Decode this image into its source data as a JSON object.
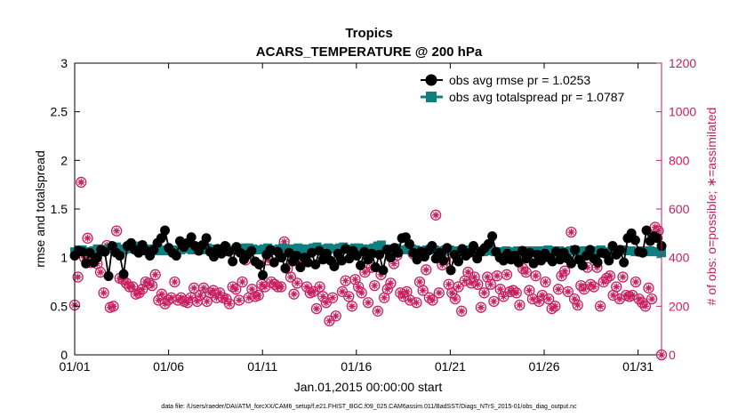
{
  "chart_data": {
    "type": "line",
    "title": "Tropics",
    "subtitle": "ACARS_TEMPERATURE @ 200 hPa",
    "xlabel": "Jan.01,2015 00:00:00 start",
    "ylabel": "rmse and totalspread",
    "y2label": "# of obs: o=possible; ∗=assimilated",
    "footnote": "data file: /Users/raeder/DAI/ATM_forcXX/CAM6_setup/f.e21.FHIST_BGC.f09_025.CAM6assim.011/BadSST/Diags_NTrS_2015-01/obs_diag_output.nc",
    "xlim": [
      1,
      32.25
    ],
    "x_ticks": [
      1,
      6,
      11,
      16,
      21,
      26,
      31
    ],
    "x_tick_labels": [
      "01/01",
      "01/06",
      "01/11",
      "01/16",
      "01/21",
      "01/26",
      "01/31"
    ],
    "ylim": [
      0,
      3
    ],
    "y_ticks": [
      0,
      0.5,
      1,
      1.5,
      2,
      2.5,
      3
    ],
    "y_tick_labels": [
      "0",
      "0.5",
      "1",
      "1.5",
      "2",
      "2.5",
      "3"
    ],
    "y2lim": [
      0,
      1200
    ],
    "y2_ticks": [
      0,
      200,
      400,
      600,
      800,
      1000,
      1200
    ],
    "y2_tick_labels": [
      "0",
      "200",
      "400",
      "600",
      "800",
      "1000",
      "1200"
    ],
    "legend_position": "top-right",
    "colors": {
      "rmse": "#000000",
      "spread": "#0f7f7f",
      "obs": "#c71f5f"
    },
    "series": [
      {
        "name": "obs avg rmse pr = 1.0253",
        "axis": "left",
        "marker": "circle",
        "values": [
          1.02,
          1.07,
          1.06,
          0.94,
          1.05,
          0.95,
          1.0,
          1.08,
          1.06,
          0.81,
          1.12,
          1.05,
          1.02,
          0.83,
          1.12,
          1.15,
          1.08,
          1.05,
          1.13,
          1.07,
          1.02,
          1.08,
          1.15,
          1.2,
          1.28,
          1.1,
          1.05,
          1.02,
          1.17,
          1.11,
          1.15,
          1.21,
          1.12,
          1.07,
          1.13,
          1.2,
          1.06,
          1.01,
          1.09,
          1.04,
          1.12,
          1.06,
          0.96,
          1.11,
          1.05,
          0.98,
          1.03,
          1.07,
          0.96,
          0.93,
          0.82,
          1.03,
          1.08,
          0.95,
          1.06,
          1.0,
          0.89,
          1.05,
          0.96,
          1.02,
          0.9,
          1.0,
          0.95,
          1.05,
          0.93,
          1.07,
          0.98,
          1.04,
          0.97,
          0.91,
          1.04,
          0.97,
          1.09,
          0.99,
          1.07,
          1.02,
          0.92,
          1.06,
          0.98,
          1.04,
          0.9,
          1.03,
          0.87,
          1.08,
          1.0,
          1.1,
          1.05,
          1.2,
          1.21,
          1.14,
          1.05,
          0.98,
          1.06,
          1.01,
          1.07,
          1.12,
          0.99,
          1.05,
          0.97,
          1.1,
          0.87,
          1.03,
          0.96,
          1.09,
          1.02,
          1.05,
          1.12,
          0.99,
          1.06,
          1.1,
          1.14,
          1.22,
          1.06,
          1.0,
          0.97,
          1.04,
          0.98,
          1.02,
          0.95,
          1.07,
          0.99,
          1.05,
          0.94,
          1.03,
          0.97,
          1.04,
          1.0,
          0.96,
          1.06,
          0.98,
          1.05,
          0.99,
          0.94,
          1.08,
          0.98,
          0.92,
          1.02,
          1.08,
          0.99,
          0.95,
          1.05,
          1.04,
          0.97,
          1.12,
          1.03,
          1.08,
          0.95,
          1.2,
          1.25,
          1.18,
          1.06,
          1.05,
          1.28,
          1.17,
          1.22,
          1.2,
          1.12
        ]
      },
      {
        "name": "obs avg totalspread pr = 1.0787",
        "axis": "left",
        "marker": "square",
        "values": [
          1.06,
          1.08,
          1.08,
          1.06,
          1.06,
          1.07,
          1.09,
          1.08,
          1.08,
          1.09,
          1.1,
          1.11,
          1.09,
          1.08,
          1.09,
          1.1,
          1.12,
          1.11,
          1.08,
          1.07,
          1.09,
          1.08,
          1.07,
          1.08,
          1.07,
          1.08,
          1.08,
          1.07,
          1.08,
          1.09,
          1.1,
          1.08,
          1.08,
          1.09,
          1.08,
          1.1,
          1.09,
          1.08,
          1.07,
          1.09,
          1.1,
          1.08,
          1.08,
          1.09,
          1.09,
          1.1,
          1.1,
          1.09,
          1.08,
          1.08,
          1.09,
          1.1,
          1.08,
          1.07,
          1.09,
          1.1,
          1.09,
          1.08,
          1.09,
          1.1,
          1.09,
          1.09,
          1.08,
          1.1,
          1.11,
          1.09,
          1.08,
          1.1,
          1.09,
          1.09,
          1.1,
          1.11,
          1.09,
          1.08,
          1.1,
          1.1,
          1.09,
          1.08,
          1.09,
          1.1,
          1.12,
          1.13,
          1.09,
          1.08,
          1.09,
          1.1,
          1.08,
          1.08,
          1.09,
          1.09,
          1.08,
          1.06,
          1.07,
          1.08,
          1.09,
          1.08,
          1.07,
          1.07,
          1.08,
          1.08,
          1.07,
          1.06,
          1.06,
          1.07,
          1.08,
          1.07,
          1.06,
          1.07,
          1.06,
          1.07,
          1.08,
          1.06,
          1.06,
          1.06,
          1.07,
          1.05,
          1.06,
          1.07,
          1.07,
          1.06,
          1.07,
          1.06,
          1.07,
          1.06,
          1.07,
          1.08,
          1.07,
          1.06,
          1.07,
          1.06,
          1.06,
          1.07,
          1.08,
          1.06,
          1.07,
          1.07,
          1.06,
          1.05,
          1.07,
          1.08,
          1.06,
          1.06,
          1.07,
          1.06,
          1.07,
          1.08,
          1.07,
          1.07,
          1.06,
          1.06,
          1.07,
          1.06,
          1.07,
          1.06,
          1.06,
          1.05
        ]
      },
      {
        "name": "# of obs (possible / assimilated)",
        "axis": "right",
        "marker": "circle-asterisk",
        "values": [
          205,
          320,
          710,
          400,
          480,
          380,
          400,
          375,
          340,
          255,
          450,
          195,
          200,
          510,
          315,
          310,
          295,
          280,
          280,
          250,
          255,
          270,
          300,
          295,
          285,
          330,
          225,
          250,
          210,
          225,
          235,
          300,
          225,
          235,
          220,
          215,
          235,
          275,
          220,
          245,
          275,
          220,
          255,
          265,
          235,
          255,
          235,
          230,
          210,
          280,
          270,
          225,
          300,
          390,
          235,
          270,
          240,
          245,
          290,
          280,
          390,
          300,
          290,
          280,
          280,
          465,
          355,
          320,
          250,
          295,
          380,
          425,
          280,
          255,
          260,
          190,
          280,
          240,
          215,
          140,
          235,
          160,
          390,
          260,
          305,
          240,
          200,
          310,
          280,
          255,
          340,
          215,
          360,
          285,
          180,
          330,
          235,
          270,
          295,
          375,
          410,
          255,
          240,
          260,
          225,
          415,
          215,
          300,
          265,
          350,
          235,
          225,
          575,
          255,
          370,
          390,
          290,
          255,
          230,
          280,
          180,
          305,
          340,
          295,
          320,
          290,
          195,
          255,
          320,
          290,
          220,
          325,
          270,
          240,
          330,
          260,
          265,
          255,
          205,
          355,
          340,
          265,
          230,
          325,
          220,
          245,
          300,
          230,
          190,
          200,
          270,
          325,
          345,
          260,
          505,
          230,
          205,
          285,
          270,
          360,
          290,
          280,
          360,
          200,
          300,
          315,
          325,
          245,
          280,
          230,
          320,
          245,
          240,
          245,
          300,
          230,
          215,
          200,
          275,
          230,
          525,
          510,
          0
        ]
      }
    ],
    "legend": [
      "obs avg rmse pr = 1.0253",
      "obs avg totalspread pr = 1.0787"
    ]
  }
}
